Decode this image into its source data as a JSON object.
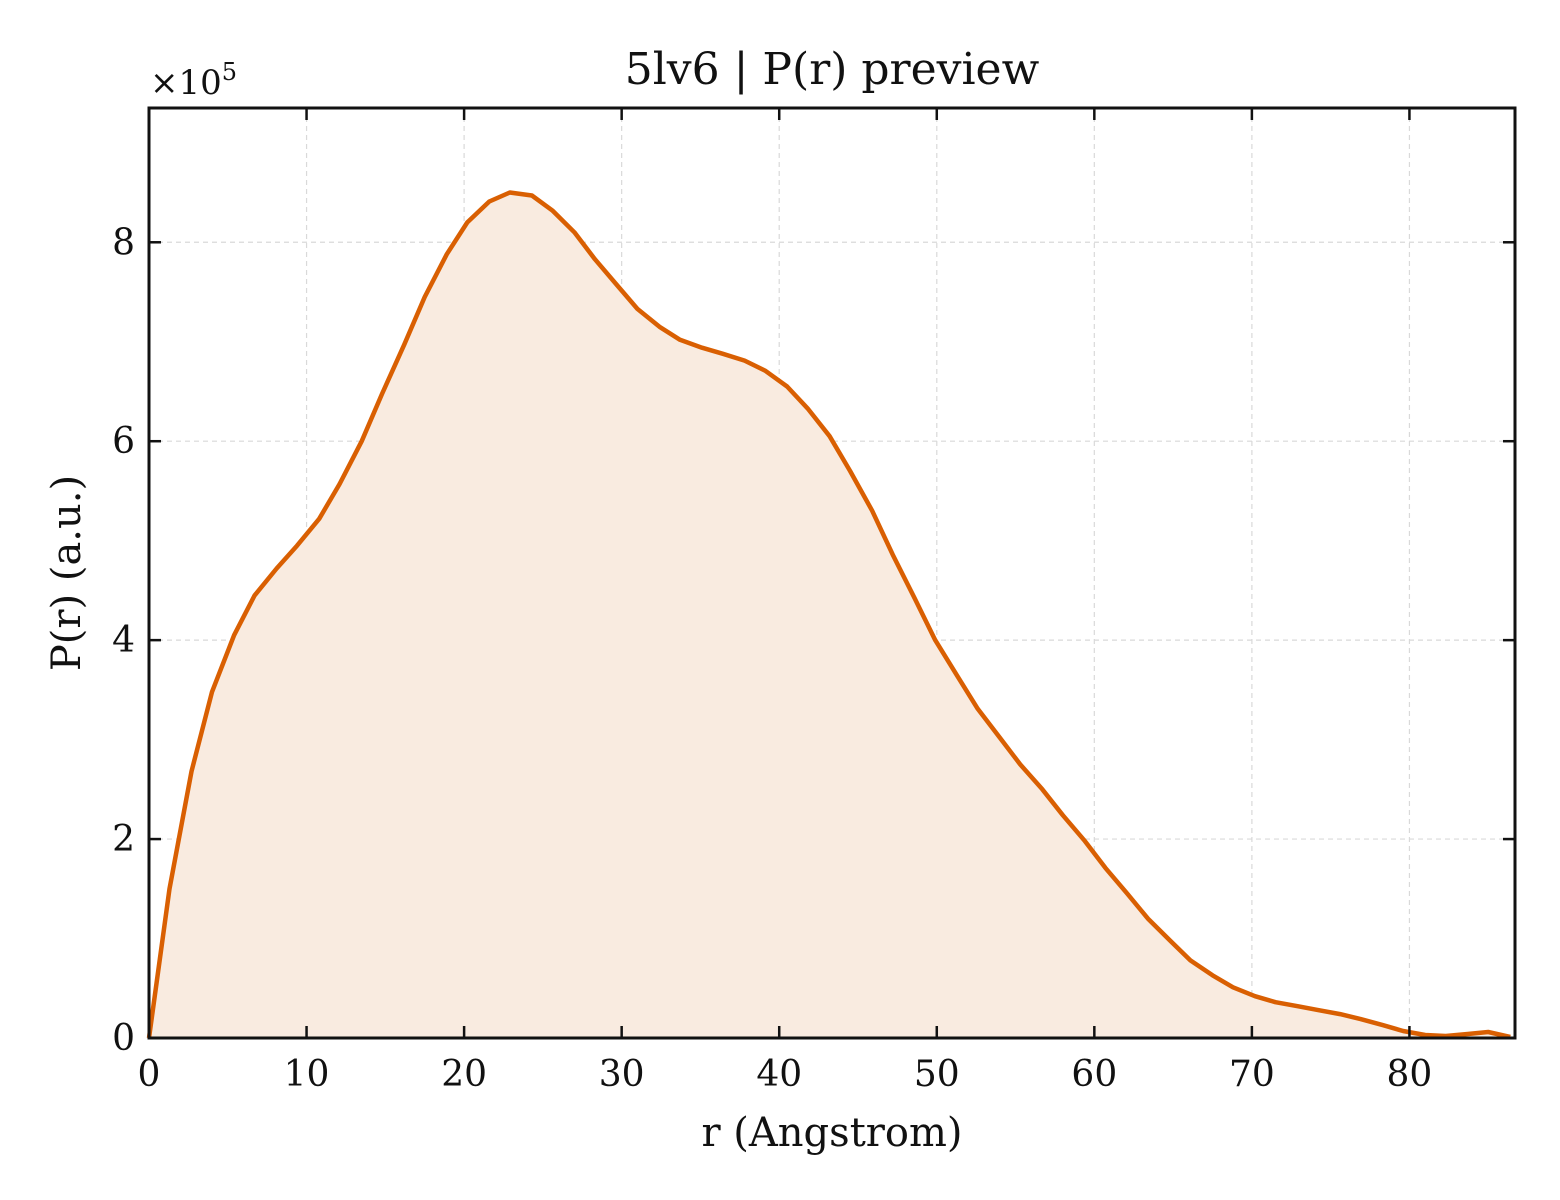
{
  "chart_data": {
    "type": "area",
    "title": "5lv6 | P(r) preview",
    "xlabel": "r (Angstrom)",
    "ylabel": "P(r) (a.u.)",
    "y_multiplier": "×10",
    "y_multiplier_exp": "5",
    "xlim": [
      0,
      86.7
    ],
    "ylim": [
      0,
      9.35
    ],
    "xticks": [
      0,
      10,
      20,
      30,
      40,
      50,
      60,
      70,
      80
    ],
    "yticks": [
      0,
      2,
      4,
      6,
      8
    ],
    "grid": true,
    "colors": {
      "line": "#d95f02",
      "fill": "#f9ebe0",
      "grid": "#d9d9d9"
    },
    "series": [
      {
        "x": [
          0,
          1.3,
          2.7,
          4.0,
          5.4,
          6.7,
          8.1,
          9.4,
          10.8,
          12.1,
          13.5,
          14.8,
          16.2,
          17.5,
          18.9,
          20.2,
          21.6,
          22.9,
          24.3,
          25.6,
          27.0,
          28.3,
          29.7,
          31.0,
          32.4,
          33.7,
          35.1,
          36.4,
          37.8,
          39.1,
          40.5,
          41.8,
          43.2,
          44.5,
          45.9,
          47.2,
          48.6,
          49.9,
          51.3,
          52.6,
          54.0,
          55.3,
          56.7,
          58.0,
          59.4,
          60.7,
          62.1,
          63.4,
          64.8,
          66.1,
          67.5,
          68.8,
          70.2,
          71.5,
          72.9,
          74.2,
          75.6,
          76.9,
          78.3,
          79.6,
          81.0,
          82.3,
          83.7,
          85.0,
          86.4
        ],
        "values": [
          0,
          1.5,
          2.68,
          3.48,
          4.05,
          4.45,
          4.72,
          4.95,
          5.22,
          5.57,
          6.0,
          6.48,
          6.97,
          7.45,
          7.88,
          8.2,
          8.41,
          8.5,
          8.47,
          8.32,
          8.1,
          7.83,
          7.57,
          7.33,
          7.15,
          7.02,
          6.94,
          6.88,
          6.81,
          6.71,
          6.55,
          6.33,
          6.05,
          5.7,
          5.3,
          4.86,
          4.42,
          4.0,
          3.64,
          3.31,
          3.02,
          2.75,
          2.5,
          2.24,
          1.98,
          1.71,
          1.45,
          1.2,
          0.98,
          0.78,
          0.63,
          0.51,
          0.42,
          0.36,
          0.32,
          0.28,
          0.24,
          0.19,
          0.13,
          0.07,
          0.03,
          0.02,
          0.04,
          0.06,
          0.01
        ]
      }
    ]
  }
}
